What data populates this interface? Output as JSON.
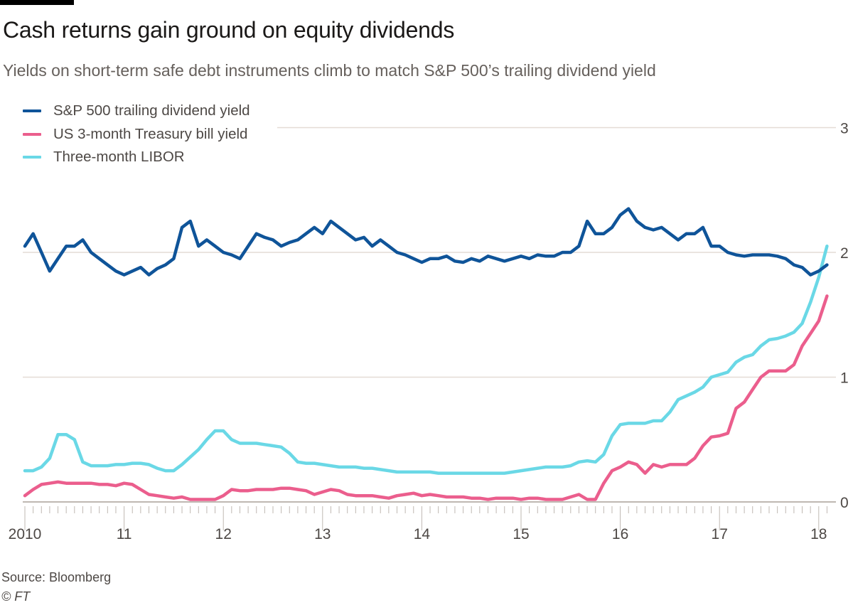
{
  "header": {
    "title": "Cash returns gain ground on equity dividends",
    "subtitle": "Yields on short-term safe debt instruments climb to match S&P 500’s trailing dividend yield"
  },
  "footer": {
    "source": "Source: Bloomberg",
    "copyright": "© FT"
  },
  "chart_data": {
    "type": "line",
    "title": "Cash returns gain ground on equity dividends",
    "xlabel": "",
    "ylabel": "",
    "xlim": [
      2010,
      2018.1
    ],
    "ylim": [
      0,
      3
    ],
    "y_ticks": [
      "0",
      "1",
      "2",
      "3"
    ],
    "x_ticks": [
      2010,
      2011,
      2012,
      2013,
      2014,
      2015,
      2016,
      2017,
      2018
    ],
    "x_tick_labels": [
      "2010",
      "11",
      "12",
      "13",
      "14",
      "15",
      "16",
      "17",
      "18"
    ],
    "grid": true,
    "legend_position": "top-left",
    "x_start": 2010,
    "x_step_months": 1,
    "series": [
      {
        "name": "S&P 500 trailing dividend yield",
        "color": "#0f5499",
        "values": [
          2.05,
          2.15,
          2.0,
          1.85,
          1.95,
          2.05,
          2.05,
          2.1,
          2.0,
          1.95,
          1.9,
          1.85,
          1.82,
          1.85,
          1.88,
          1.82,
          1.87,
          1.9,
          1.95,
          2.2,
          2.25,
          2.05,
          2.1,
          2.05,
          2.0,
          1.98,
          1.95,
          2.05,
          2.15,
          2.12,
          2.1,
          2.05,
          2.08,
          2.1,
          2.15,
          2.2,
          2.15,
          2.25,
          2.2,
          2.15,
          2.1,
          2.12,
          2.05,
          2.1,
          2.05,
          2.0,
          1.98,
          1.95,
          1.92,
          1.95,
          1.95,
          1.97,
          1.93,
          1.92,
          1.95,
          1.93,
          1.97,
          1.95,
          1.93,
          1.95,
          1.97,
          1.95,
          1.98,
          1.97,
          1.97,
          2.0,
          2.0,
          2.05,
          2.25,
          2.15,
          2.15,
          2.2,
          2.3,
          2.35,
          2.25,
          2.2,
          2.18,
          2.2,
          2.15,
          2.1,
          2.15,
          2.15,
          2.2,
          2.05,
          2.05,
          2.0,
          1.98,
          1.97,
          1.98,
          1.98,
          1.98,
          1.97,
          1.95,
          1.9,
          1.88,
          1.82,
          1.85,
          1.9
        ]
      },
      {
        "name": "US 3-month Treasury bill yield",
        "color": "#eb5e8d",
        "values": [
          0.05,
          0.1,
          0.14,
          0.15,
          0.16,
          0.15,
          0.15,
          0.15,
          0.15,
          0.14,
          0.14,
          0.13,
          0.15,
          0.14,
          0.1,
          0.06,
          0.05,
          0.04,
          0.03,
          0.04,
          0.02,
          0.02,
          0.02,
          0.02,
          0.05,
          0.1,
          0.09,
          0.09,
          0.1,
          0.1,
          0.1,
          0.11,
          0.11,
          0.1,
          0.09,
          0.06,
          0.08,
          0.1,
          0.09,
          0.06,
          0.05,
          0.05,
          0.05,
          0.04,
          0.03,
          0.05,
          0.06,
          0.07,
          0.05,
          0.06,
          0.05,
          0.04,
          0.04,
          0.04,
          0.03,
          0.03,
          0.02,
          0.03,
          0.03,
          0.03,
          0.02,
          0.03,
          0.03,
          0.02,
          0.02,
          0.02,
          0.04,
          0.06,
          0.02,
          0.02,
          0.15,
          0.25,
          0.28,
          0.32,
          0.3,
          0.23,
          0.3,
          0.28,
          0.3,
          0.3,
          0.3,
          0.35,
          0.45,
          0.52,
          0.53,
          0.55,
          0.75,
          0.8,
          0.9,
          1.0,
          1.05,
          1.05,
          1.05,
          1.1,
          1.25,
          1.35,
          1.45,
          1.65
        ]
      },
      {
        "name": "Three-month LIBOR",
        "color": "#6ad8e6",
        "values": [
          0.25,
          0.25,
          0.28,
          0.35,
          0.54,
          0.54,
          0.5,
          0.32,
          0.29,
          0.29,
          0.29,
          0.3,
          0.3,
          0.31,
          0.31,
          0.3,
          0.27,
          0.25,
          0.25,
          0.3,
          0.36,
          0.42,
          0.5,
          0.57,
          0.57,
          0.5,
          0.47,
          0.47,
          0.47,
          0.46,
          0.45,
          0.44,
          0.39,
          0.32,
          0.31,
          0.31,
          0.3,
          0.29,
          0.28,
          0.28,
          0.28,
          0.27,
          0.27,
          0.26,
          0.25,
          0.24,
          0.24,
          0.24,
          0.24,
          0.24,
          0.23,
          0.23,
          0.23,
          0.23,
          0.23,
          0.23,
          0.23,
          0.23,
          0.23,
          0.24,
          0.25,
          0.26,
          0.27,
          0.28,
          0.28,
          0.28,
          0.29,
          0.32,
          0.33,
          0.32,
          0.38,
          0.53,
          0.62,
          0.63,
          0.63,
          0.63,
          0.65,
          0.65,
          0.72,
          0.82,
          0.85,
          0.88,
          0.92,
          1.0,
          1.02,
          1.04,
          1.12,
          1.16,
          1.18,
          1.25,
          1.3,
          1.31,
          1.33,
          1.36,
          1.43,
          1.6,
          1.8,
          2.05
        ]
      }
    ]
  }
}
